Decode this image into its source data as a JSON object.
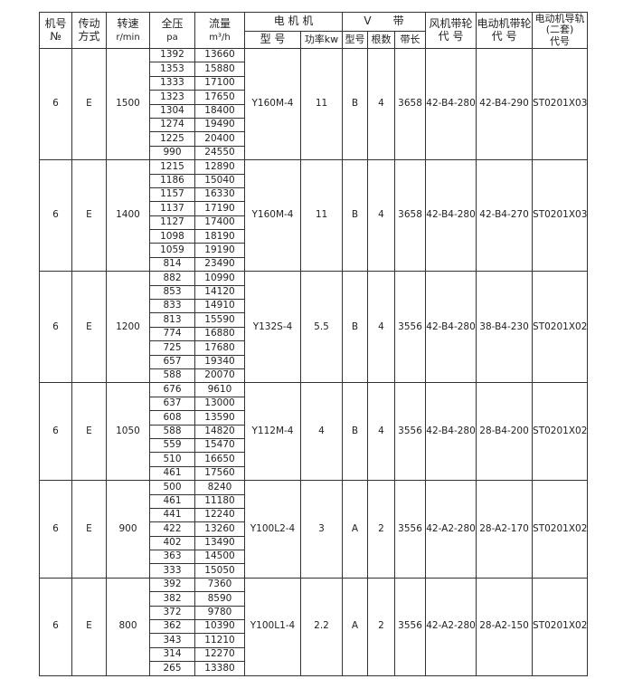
{
  "header": {
    "no": "机号",
    "no2": "№",
    "drive": "传动",
    "drive2": "方式",
    "speed": "转速",
    "speed2": "r/min",
    "pressure": "全压",
    "pressure2": "pa",
    "flow": "流量",
    "flow2": "m³/h",
    "motor": "电 机 机",
    "motor_model": "型 号",
    "motor_power": "功率kw",
    "vbelt": "V　　带",
    "belt_type": "型号",
    "belt_count": "根数",
    "belt_length": "带长",
    "fan_pulley": "风机带轮",
    "fan_pulley2": "代 号",
    "motor_pulley": "电动机带轮",
    "motor_pulley2": "代 号",
    "rail": "电动机导轨",
    "rail2": "(二套)",
    "rail3": "代号"
  },
  "groups": [
    {
      "no": "6",
      "drive": "E",
      "speed": "1500",
      "motor": "Y160M-4",
      "power": "11",
      "belt_type": "B",
      "belt_count": "4",
      "belt_length": "3658",
      "fan_pulley": "42-B4-280",
      "motor_pulley": "42-B4-290",
      "rail": "ST0201X03",
      "rows": [
        [
          "1392",
          "13660"
        ],
        [
          "1353",
          "15880"
        ],
        [
          "1333",
          "17100"
        ],
        [
          "1323",
          "17650"
        ],
        [
          "1304",
          "18400"
        ],
        [
          "1274",
          "19490"
        ],
        [
          "1225",
          "20400"
        ],
        [
          "990",
          "24550"
        ]
      ]
    },
    {
      "no": "6",
      "drive": "E",
      "speed": "1400",
      "motor": "Y160M-4",
      "power": "11",
      "belt_type": "B",
      "belt_count": "4",
      "belt_length": "3658",
      "fan_pulley": "42-B4-280",
      "motor_pulley": "42-B4-270",
      "rail": "ST0201X03",
      "rows": [
        [
          "1215",
          "12890"
        ],
        [
          "1186",
          "15040"
        ],
        [
          "1157",
          "16330"
        ],
        [
          "1137",
          "17190"
        ],
        [
          "1127",
          "17400"
        ],
        [
          "1098",
          "18190"
        ],
        [
          "1059",
          "19190"
        ],
        [
          "814",
          "23490"
        ]
      ]
    },
    {
      "no": "6",
      "drive": "E",
      "speed": "1200",
      "motor": "Y132S-4",
      "power": "5.5",
      "belt_type": "B",
      "belt_count": "4",
      "belt_length": "3556",
      "fan_pulley": "42-B4-280",
      "motor_pulley": "38-B4-230",
      "rail": "ST0201X02",
      "rows": [
        [
          "882",
          "10990"
        ],
        [
          "853",
          "14120"
        ],
        [
          "833",
          "14910"
        ],
        [
          "813",
          "15590"
        ],
        [
          "774",
          "16880"
        ],
        [
          "725",
          "17680"
        ],
        [
          "657",
          "19340"
        ],
        [
          "588",
          "20070"
        ]
      ]
    },
    {
      "no": "6",
      "drive": "E",
      "speed": "1050",
      "motor": "Y112M-4",
      "power": "4",
      "belt_type": "B",
      "belt_count": "4",
      "belt_length": "3556",
      "fan_pulley": "42-B4-280",
      "motor_pulley": "28-B4-200",
      "rail": "ST0201X02",
      "rows": [
        [
          "676",
          "9610"
        ],
        [
          "637",
          "13000"
        ],
        [
          "608",
          "13590"
        ],
        [
          "588",
          "14820"
        ],
        [
          "559",
          "15470"
        ],
        [
          "510",
          "16650"
        ],
        [
          "461",
          "17560"
        ]
      ]
    },
    {
      "no": "6",
      "drive": "E",
      "speed": "900",
      "motor": "Y100L2-4",
      "power": "3",
      "belt_type": "A",
      "belt_count": "2",
      "belt_length": "3556",
      "fan_pulley": "42-A2-280",
      "motor_pulley": "28-A2-170",
      "rail": "ST0201X02",
      "rows": [
        [
          "500",
          "8240"
        ],
        [
          "461",
          "11180"
        ],
        [
          "441",
          "12240"
        ],
        [
          "422",
          "13260"
        ],
        [
          "402",
          "13490"
        ],
        [
          "363",
          "14500"
        ],
        [
          "333",
          "15050"
        ]
      ]
    },
    {
      "no": "6",
      "drive": "E",
      "speed": "800",
      "motor": "Y100L1-4",
      "power": "2.2",
      "belt_type": "A",
      "belt_count": "2",
      "belt_length": "3556",
      "fan_pulley": "42-A2-280",
      "motor_pulley": "28-A2-150",
      "rail": "ST0201X02",
      "rows": [
        [
          "392",
          "7360"
        ],
        [
          "382",
          "8590"
        ],
        [
          "372",
          "9780"
        ],
        [
          "362",
          "10390"
        ],
        [
          "343",
          "11210"
        ],
        [
          "314",
          "12270"
        ],
        [
          "265",
          "13380"
        ]
      ]
    }
  ]
}
